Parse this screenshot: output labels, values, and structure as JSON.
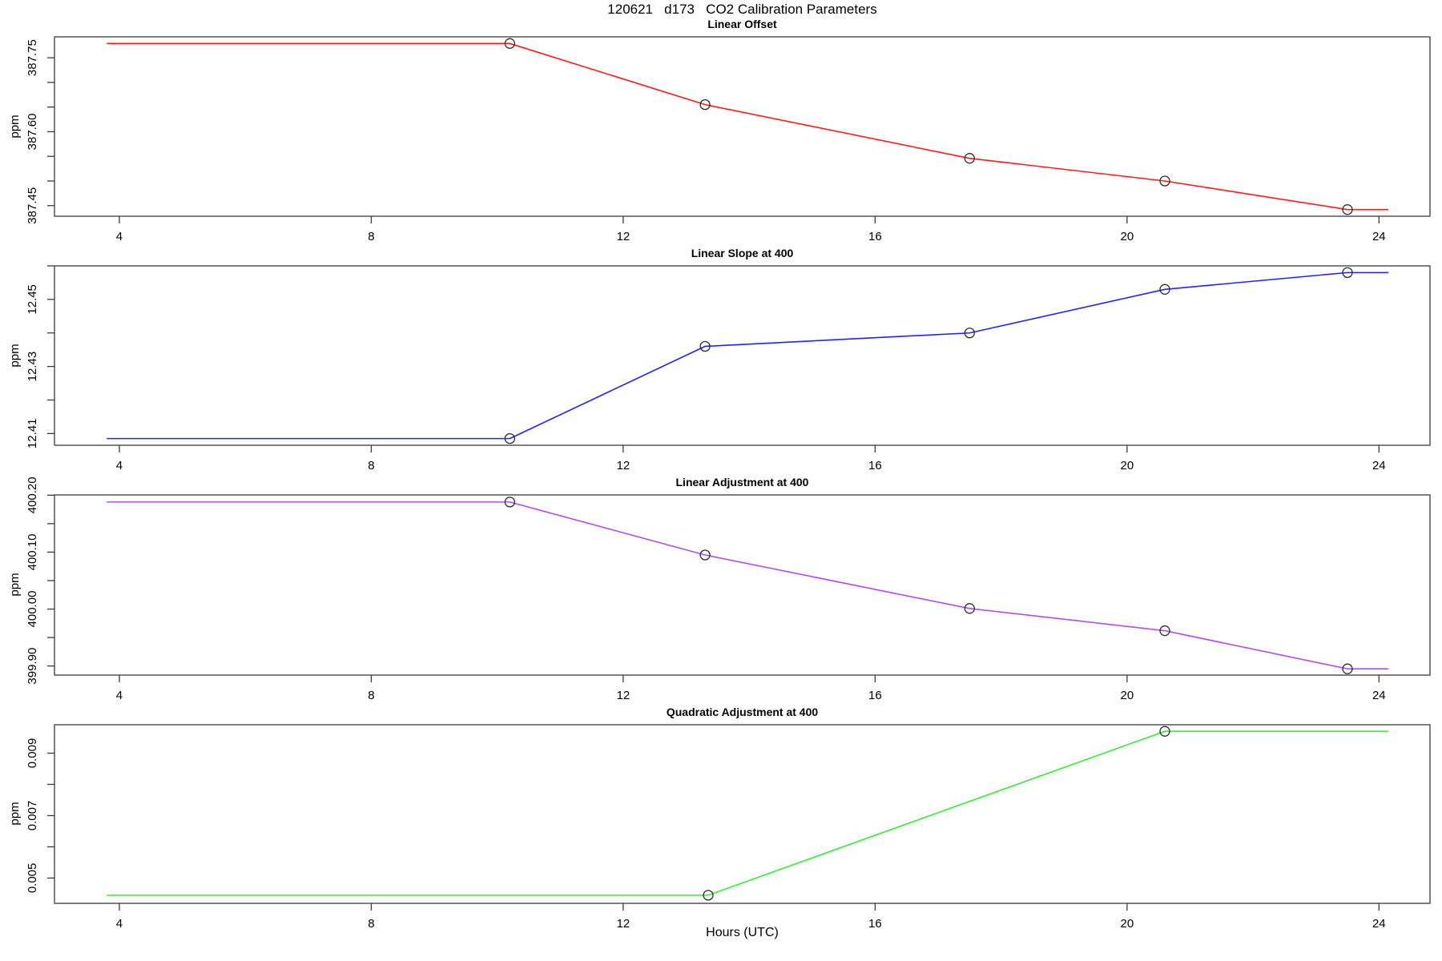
{
  "figure": {
    "title": "120621   d173   CO2 Calibration Parameters",
    "x_axis_label": "Hours (UTC)"
  },
  "chart_data": [
    {
      "type": "line",
      "title": "Linear Offset",
      "ylabel": "ppm",
      "color": "#ff1a1a",
      "marker": "open-circle",
      "xlim": [
        2.97,
        24.81
      ],
      "ylim": [
        387.4285,
        387.7925
      ],
      "x_ticks": [
        {
          "v": 4,
          "label": "4"
        },
        {
          "v": 8,
          "label": "8"
        },
        {
          "v": 12,
          "label": "12"
        },
        {
          "v": 16,
          "label": "16"
        },
        {
          "v": 20,
          "label": "20"
        },
        {
          "v": 24,
          "label": "24"
        }
      ],
      "y_ticks": [
        {
          "v": 387.45,
          "label": "387.45"
        },
        {
          "v": 387.5,
          "label": ""
        },
        {
          "v": 387.55,
          "label": ""
        },
        {
          "v": 387.6,
          "label": "387.60"
        },
        {
          "v": 387.65,
          "label": ""
        },
        {
          "v": 387.7,
          "label": ""
        },
        {
          "v": 387.75,
          "label": "387.75"
        }
      ],
      "line": {
        "x": [
          3.8,
          10.2,
          13.3,
          17.5,
          20.6,
          23.5,
          24.15
        ],
        "y": [
          387.779,
          387.779,
          387.655,
          387.546,
          387.5,
          387.442,
          387.442
        ]
      },
      "markers": {
        "x": [
          10.2,
          13.3,
          17.5,
          20.6,
          23.5
        ],
        "y": [
          387.779,
          387.655,
          387.546,
          387.5,
          387.442
        ]
      }
    },
    {
      "type": "line",
      "title": "Linear Slope at 400",
      "ylabel": "ppm",
      "color": "#2222ff",
      "marker": "open-circle",
      "xlim": [
        2.97,
        24.81
      ],
      "ylim": [
        12.4065,
        12.46
      ],
      "x_ticks": [
        {
          "v": 4,
          "label": "4"
        },
        {
          "v": 8,
          "label": "8"
        },
        {
          "v": 12,
          "label": "12"
        },
        {
          "v": 16,
          "label": "16"
        },
        {
          "v": 20,
          "label": "20"
        },
        {
          "v": 24,
          "label": "24"
        }
      ],
      "y_ticks": [
        {
          "v": 12.41,
          "label": "12.41"
        },
        {
          "v": 12.42,
          "label": ""
        },
        {
          "v": 12.43,
          "label": "12.43"
        },
        {
          "v": 12.44,
          "label": ""
        },
        {
          "v": 12.45,
          "label": "12.45"
        },
        {
          "v": 12.46,
          "label": ""
        }
      ],
      "line": {
        "x": [
          3.8,
          10.2,
          13.3,
          17.5,
          20.6,
          23.5,
          24.15
        ],
        "y": [
          12.4085,
          12.4085,
          12.436,
          12.44,
          12.453,
          12.458,
          12.458
        ]
      },
      "markers": {
        "x": [
          10.2,
          13.3,
          17.5,
          20.6,
          23.5
        ],
        "y": [
          12.4085,
          12.436,
          12.44,
          12.453,
          12.458
        ]
      }
    },
    {
      "type": "line",
      "title": "Linear Adjustment at 400",
      "ylabel": "ppm",
      "color": "#b14cf0",
      "marker": "open-circle",
      "xlim": [
        2.97,
        24.81
      ],
      "ylim": [
        399.884,
        400.2005
      ],
      "x_ticks": [
        {
          "v": 4,
          "label": "4"
        },
        {
          "v": 8,
          "label": "8"
        },
        {
          "v": 12,
          "label": "12"
        },
        {
          "v": 16,
          "label": "16"
        },
        {
          "v": 20,
          "label": "20"
        },
        {
          "v": 24,
          "label": "24"
        }
      ],
      "y_ticks": [
        {
          "v": 399.9,
          "label": "399.90"
        },
        {
          "v": 399.95,
          "label": ""
        },
        {
          "v": 400.0,
          "label": "400.00"
        },
        {
          "v": 400.05,
          "label": ""
        },
        {
          "v": 400.1,
          "label": "400.10"
        },
        {
          "v": 400.15,
          "label": ""
        },
        {
          "v": 400.2,
          "label": "400.20"
        }
      ],
      "line": {
        "x": [
          3.8,
          10.2,
          13.3,
          17.5,
          20.6,
          23.5,
          24.15
        ],
        "y": [
          400.188,
          400.188,
          400.095,
          400.001,
          399.962,
          399.895,
          399.895
        ]
      },
      "markers": {
        "x": [
          10.2,
          13.3,
          17.5,
          20.6,
          23.5
        ],
        "y": [
          400.188,
          400.095,
          400.001,
          399.962,
          399.895
        ]
      }
    },
    {
      "type": "line",
      "title": "Quadratic Adjustment at 400",
      "ylabel": "ppm",
      "color": "#33ee33",
      "marker": "open-circle",
      "xlim": [
        2.97,
        24.81
      ],
      "ylim": [
        0.00419,
        0.00991
      ],
      "x_ticks": [
        {
          "v": 4,
          "label": "4"
        },
        {
          "v": 8,
          "label": "8"
        },
        {
          "v": 12,
          "label": "12"
        },
        {
          "v": 16,
          "label": "16"
        },
        {
          "v": 20,
          "label": "20"
        },
        {
          "v": 24,
          "label": "24"
        }
      ],
      "y_ticks": [
        {
          "v": 0.005,
          "label": "0.005"
        },
        {
          "v": 0.006,
          "label": ""
        },
        {
          "v": 0.007,
          "label": "0.007"
        },
        {
          "v": 0.008,
          "label": ""
        },
        {
          "v": 0.009,
          "label": "0.009"
        }
      ],
      "line": {
        "x": [
          3.8,
          13.35,
          20.6,
          24.15
        ],
        "y": [
          0.00445,
          0.00445,
          0.0097,
          0.0097
        ]
      },
      "markers": {
        "x": [
          13.35,
          20.6
        ],
        "y": [
          0.00445,
          0.0097
        ]
      }
    }
  ]
}
